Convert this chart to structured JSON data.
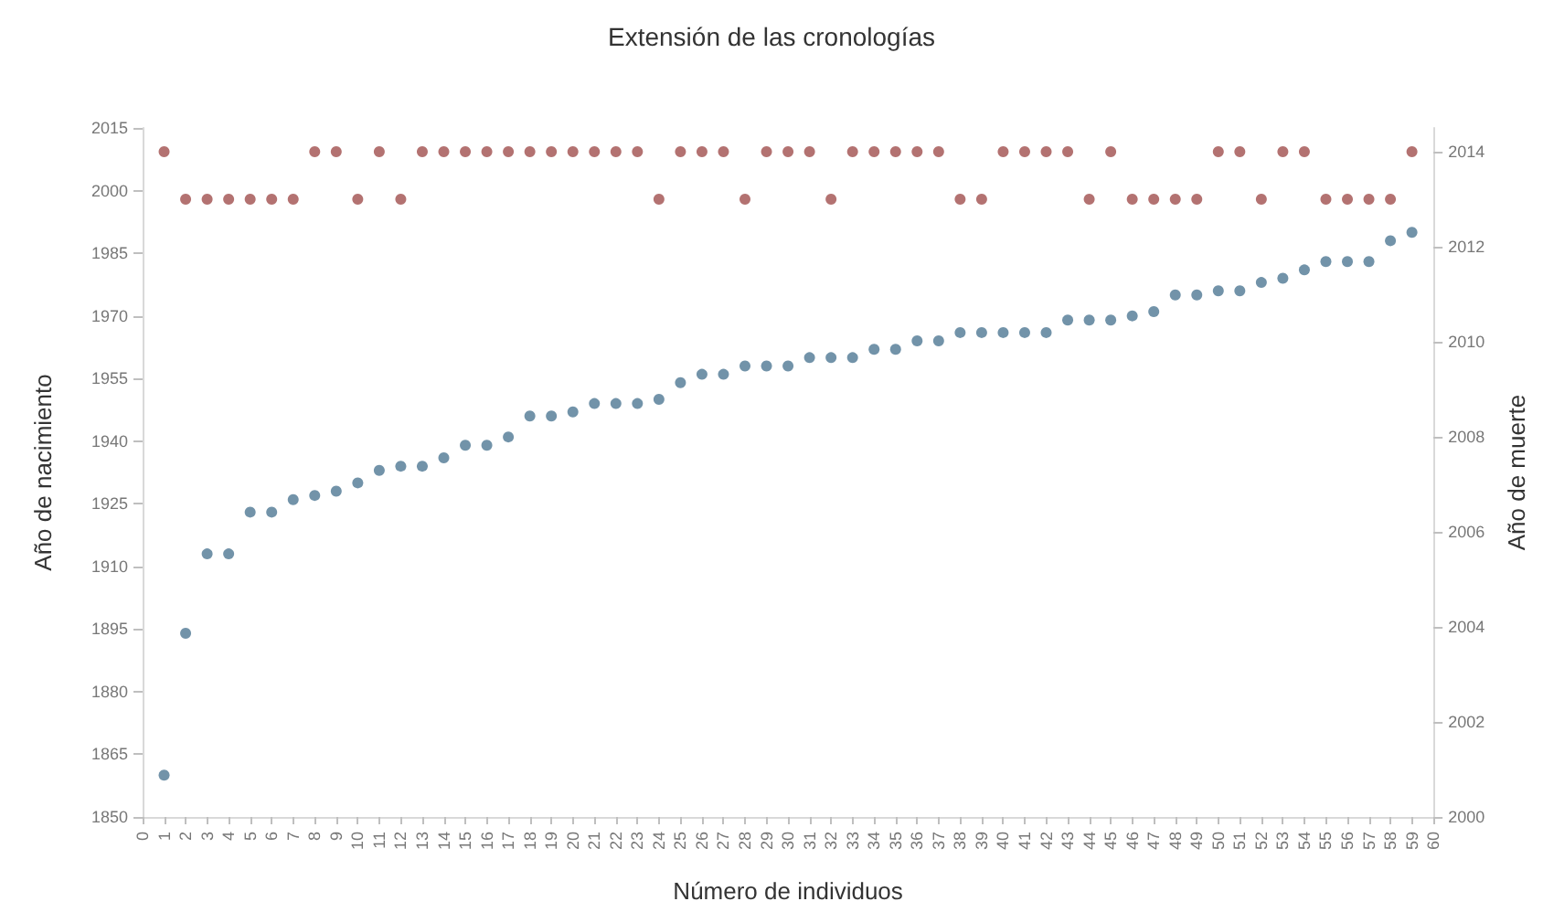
{
  "chart_data": {
    "type": "scatter",
    "title": "Extensión de las cronologías",
    "xlabel": "Número de individuos",
    "ylabel": "Año de nacimiento",
    "y2label": "Año de muerte",
    "x": [
      1,
      2,
      3,
      4,
      5,
      6,
      7,
      8,
      9,
      10,
      11,
      12,
      13,
      14,
      15,
      16,
      17,
      18,
      19,
      20,
      21,
      22,
      23,
      24,
      25,
      26,
      27,
      28,
      29,
      30,
      31,
      32,
      33,
      34,
      35,
      36,
      37,
      38,
      39,
      40,
      41,
      42,
      43,
      44,
      45,
      46,
      47,
      48,
      49,
      50,
      51,
      52,
      53,
      54,
      55,
      56,
      57,
      58,
      59
    ],
    "series": [
      {
        "color": "#4f7893",
        "values": [
          1860,
          1894,
          1913,
          1913,
          1923,
          1923,
          1926,
          1927,
          1928,
          1930,
          1933,
          1934,
          1934,
          1936,
          1939,
          1939,
          1941,
          1946,
          1946,
          1947,
          1949,
          1949,
          1949,
          1950,
          1954,
          1956,
          1956,
          1958,
          1958,
          1958,
          1960,
          1960,
          1960,
          1962,
          1962,
          1964,
          1964,
          1966,
          1966,
          1966,
          1966,
          1966,
          1969,
          1969,
          1969,
          1970,
          1971,
          1975,
          1975,
          1976,
          1976,
          1978,
          1979,
          1981,
          1983,
          1983,
          1983,
          1988,
          1990
        ]
      },
      {
        "color": "#a04f4d",
        "axis": "y2",
        "values": [
          2014,
          2013,
          2013,
          2013,
          2013,
          2013,
          2013,
          2014,
          2014,
          2013,
          2014,
          2013,
          2014,
          2014,
          2014,
          2014,
          2014,
          2014,
          2014,
          2014,
          2014,
          2014,
          2014,
          2013,
          2014,
          2014,
          2014,
          2013,
          2014,
          2014,
          2014,
          2013,
          2014,
          2014,
          2014,
          2014,
          2014,
          2013,
          2013,
          2014,
          2014,
          2014,
          2014,
          2013,
          2014,
          2013,
          2013,
          2013,
          2013,
          2014,
          2014,
          2013,
          2014,
          2014,
          2013,
          2013,
          2013,
          2013,
          2014
        ]
      }
    ],
    "xlim": [
      0,
      60
    ],
    "xticks": [
      0,
      1,
      2,
      3,
      4,
      5,
      6,
      7,
      8,
      9,
      10,
      11,
      12,
      13,
      14,
      15,
      16,
      17,
      18,
      19,
      20,
      21,
      22,
      23,
      24,
      25,
      26,
      27,
      28,
      29,
      30,
      31,
      32,
      33,
      34,
      35,
      36,
      37,
      38,
      39,
      40,
      41,
      42,
      43,
      44,
      45,
      46,
      47,
      48,
      49,
      50,
      51,
      52,
      53,
      54,
      55,
      56,
      57,
      58,
      59,
      60
    ],
    "ylim": [
      1850,
      2015
    ],
    "yticks": [
      1850,
      1865,
      1880,
      1895,
      1910,
      1925,
      1940,
      1955,
      1970,
      1985,
      2000,
      2015
    ],
    "y2lim": [
      2000,
      2014.5
    ],
    "y2ticks": [
      2000,
      2002,
      2004,
      2006,
      2008,
      2010,
      2012,
      2014
    ],
    "grid": false,
    "marker": "circle"
  }
}
